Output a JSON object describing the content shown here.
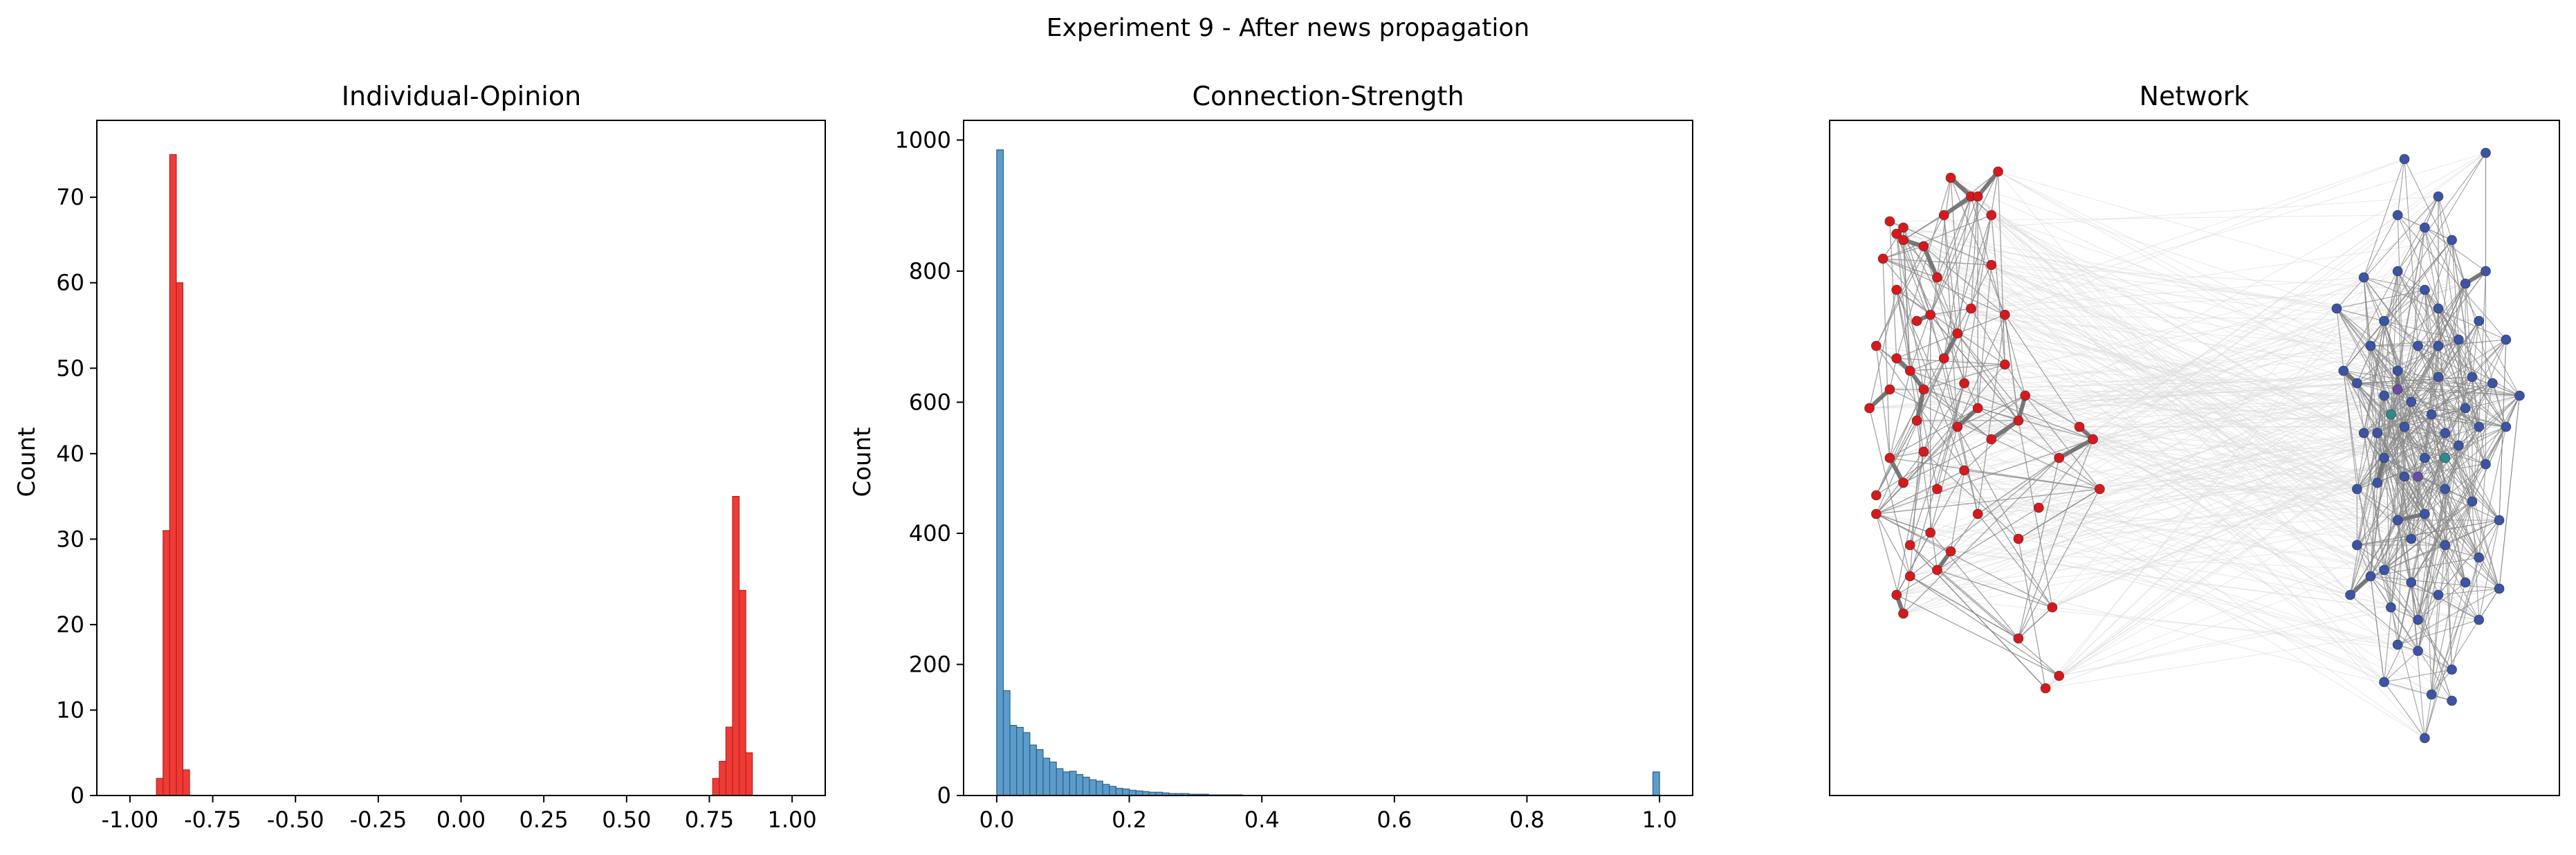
{
  "suptitle": "Experiment 9 - After news propagation",
  "colors": {
    "opinion_fill": "#f03b35",
    "opinion_edge": "#b22222",
    "strength_fill": "#5b9ccb",
    "strength_edge": "#2f5f85",
    "red_node": "#d7191c",
    "blue_node": "#3b54a4",
    "purple_node": "#6a4aa8",
    "teal_node": "#2a8c8c",
    "strong_edge": "#777777",
    "weak_edge": "#dcdcdc"
  },
  "chart_data": [
    {
      "type": "bar",
      "title": "Individual-Opinion",
      "xlabel": "",
      "ylabel": "Count",
      "xlim": [
        -1.1,
        1.1
      ],
      "ylim": [
        0,
        79
      ],
      "xticks": [
        "-1.00",
        "-0.75",
        "-0.50",
        "-0.25",
        "0.00",
        "0.25",
        "0.50",
        "0.75",
        "1.00"
      ],
      "xtick_values": [
        -1.0,
        -0.75,
        -0.5,
        -0.25,
        0.0,
        0.25,
        0.5,
        0.75,
        1.0
      ],
      "yticks": [
        "0",
        "10",
        "20",
        "30",
        "40",
        "50",
        "60",
        "70"
      ],
      "ytick_values": [
        0,
        10,
        20,
        30,
        40,
        50,
        60,
        70
      ],
      "bin_width": 0.02,
      "bin_left_edges": [
        -0.92,
        -0.9,
        -0.88,
        -0.86,
        -0.84,
        0.76,
        0.78,
        0.8,
        0.82,
        0.84,
        0.86
      ],
      "values": [
        2,
        31,
        75,
        60,
        3,
        2,
        4,
        8,
        35,
        24,
        5
      ]
    },
    {
      "type": "bar",
      "title": "Connection-Strength",
      "xlabel": "",
      "ylabel": "Count",
      "xlim": [
        -0.05,
        1.05
      ],
      "ylim": [
        0,
        1030
      ],
      "xticks": [
        "0.0",
        "0.2",
        "0.4",
        "0.6",
        "0.8",
        "1.0"
      ],
      "xtick_values": [
        0.0,
        0.2,
        0.4,
        0.6,
        0.8,
        1.0
      ],
      "yticks": [
        "0",
        "200",
        "400",
        "600",
        "800",
        "1000"
      ],
      "ytick_values": [
        0,
        200,
        400,
        600,
        800,
        1000
      ],
      "bin_width": 0.01,
      "bin_start": 0.0,
      "values": [
        985,
        160,
        107,
        104,
        96,
        77,
        70,
        57,
        51,
        41,
        36,
        37,
        32,
        28,
        24,
        22,
        17,
        14,
        11,
        10,
        8,
        7,
        6,
        5,
        5,
        4,
        3,
        3,
        3,
        2,
        2,
        2,
        1,
        1,
        1,
        1,
        1,
        0,
        0,
        0,
        0,
        0,
        0,
        0,
        0,
        0,
        0,
        0,
        0,
        0,
        0,
        0,
        0,
        0,
        0,
        0,
        0,
        0,
        0,
        0,
        0,
        0,
        0,
        0,
        0,
        0,
        0,
        0,
        0,
        0,
        0,
        0,
        0,
        0,
        0,
        0,
        0,
        0,
        0,
        0,
        0,
        0,
        0,
        0,
        0,
        0,
        0,
        0,
        0,
        0,
        0,
        0,
        0,
        0,
        0,
        0,
        0,
        0,
        0,
        36
      ]
    },
    {
      "type": "network",
      "title": "Network",
      "red_nodes": [
        [
          0.14,
          0.95
        ],
        [
          0.17,
          0.92
        ],
        [
          0.18,
          0.92
        ],
        [
          0.05,
          0.88
        ],
        [
          0.06,
          0.86
        ],
        [
          0.07,
          0.87
        ],
        [
          0.07,
          0.85
        ],
        [
          0.04,
          0.82
        ],
        [
          0.1,
          0.84
        ],
        [
          0.06,
          0.77
        ],
        [
          0.13,
          0.89
        ],
        [
          0.21,
          0.96
        ],
        [
          0.2,
          0.89
        ],
        [
          0.12,
          0.79
        ],
        [
          0.11,
          0.73
        ],
        [
          0.09,
          0.72
        ],
        [
          0.03,
          0.68
        ],
        [
          0.06,
          0.66
        ],
        [
          0.08,
          0.64
        ],
        [
          0.05,
          0.61
        ],
        [
          0.02,
          0.58
        ],
        [
          0.1,
          0.61
        ],
        [
          0.13,
          0.66
        ],
        [
          0.16,
          0.62
        ],
        [
          0.15,
          0.7
        ],
        [
          0.1,
          0.51
        ],
        [
          0.05,
          0.5
        ],
        [
          0.03,
          0.44
        ],
        [
          0.07,
          0.46
        ],
        [
          0.12,
          0.45
        ],
        [
          0.16,
          0.48
        ],
        [
          0.2,
          0.53
        ],
        [
          0.24,
          0.56
        ],
        [
          0.18,
          0.58
        ],
        [
          0.11,
          0.38
        ],
        [
          0.14,
          0.35
        ],
        [
          0.08,
          0.36
        ],
        [
          0.03,
          0.41
        ],
        [
          0.06,
          0.28
        ],
        [
          0.07,
          0.25
        ],
        [
          0.24,
          0.21
        ],
        [
          0.28,
          0.13
        ],
        [
          0.3,
          0.15
        ],
        [
          0.29,
          0.26
        ],
        [
          0.36,
          0.45
        ],
        [
          0.35,
          0.53
        ],
        [
          0.3,
          0.5
        ],
        [
          0.27,
          0.42
        ],
        [
          0.33,
          0.55
        ],
        [
          0.25,
          0.6
        ],
        [
          0.08,
          0.31
        ],
        [
          0.22,
          0.73
        ],
        [
          0.2,
          0.81
        ],
        [
          0.15,
          0.55
        ],
        [
          0.18,
          0.41
        ],
        [
          0.12,
          0.32
        ],
        [
          0.24,
          0.37
        ],
        [
          0.17,
          0.74
        ],
        [
          0.22,
          0.65
        ],
        [
          0.09,
          0.56
        ]
      ],
      "blue_nodes": [
        [
          0.71,
          0.74
        ],
        [
          0.75,
          0.79
        ],
        [
          0.72,
          0.64
        ],
        [
          0.75,
          0.54
        ],
        [
          0.77,
          0.46
        ],
        [
          0.8,
          0.4
        ],
        [
          0.74,
          0.36
        ],
        [
          0.78,
          0.32
        ],
        [
          0.82,
          0.3
        ],
        [
          0.73,
          0.28
        ],
        [
          0.8,
          0.2
        ],
        [
          0.83,
          0.19
        ],
        [
          0.78,
          0.14
        ],
        [
          0.85,
          0.12
        ],
        [
          0.88,
          0.11
        ],
        [
          0.84,
          0.05
        ],
        [
          0.88,
          0.16
        ],
        [
          0.92,
          0.24
        ],
        [
          0.95,
          0.29
        ],
        [
          0.9,
          0.3
        ],
        [
          0.92,
          0.34
        ],
        [
          0.95,
          0.4
        ],
        [
          0.93,
          0.49
        ],
        [
          0.96,
          0.55
        ],
        [
          0.9,
          0.58
        ],
        [
          0.86,
          0.63
        ],
        [
          0.83,
          0.68
        ],
        [
          0.86,
          0.74
        ],
        [
          0.9,
          0.78
        ],
        [
          0.92,
          0.72
        ],
        [
          0.96,
          0.69
        ],
        [
          0.98,
          0.6
        ],
        [
          0.93,
          0.8
        ],
        [
          0.88,
          0.85
        ],
        [
          0.84,
          0.87
        ],
        [
          0.8,
          0.8
        ],
        [
          0.78,
          0.72
        ],
        [
          0.74,
          0.62
        ],
        [
          0.78,
          0.6
        ],
        [
          0.81,
          0.55
        ],
        [
          0.84,
          0.5
        ],
        [
          0.87,
          0.45
        ],
        [
          0.84,
          0.41
        ],
        [
          0.87,
          0.36
        ],
        [
          0.86,
          0.28
        ],
        [
          0.83,
          0.24
        ],
        [
          0.8,
          0.64
        ],
        [
          0.77,
          0.54
        ],
        [
          0.81,
          0.47
        ],
        [
          0.89,
          0.52
        ],
        [
          0.91,
          0.63
        ],
        [
          0.85,
          0.57
        ],
        [
          0.82,
          0.37
        ],
        [
          0.76,
          0.68
        ],
        [
          0.94,
          0.62
        ],
        [
          0.89,
          0.69
        ],
        [
          0.8,
          0.89
        ],
        [
          0.86,
          0.92
        ],
        [
          0.81,
          0.98
        ],
        [
          0.93,
          0.99
        ],
        [
          0.91,
          0.43
        ],
        [
          0.79,
          0.26
        ],
        [
          0.76,
          0.31
        ],
        [
          0.84,
          0.77
        ],
        [
          0.87,
          0.54
        ],
        [
          0.82,
          0.59
        ],
        [
          0.78,
          0.5
        ],
        [
          0.92,
          0.55
        ],
        [
          0.74,
          0.45
        ],
        [
          0.86,
          0.68
        ]
      ],
      "purple_nodes": [
        [
          0.83,
          0.47
        ],
        [
          0.8,
          0.61
        ]
      ],
      "teal_nodes": [
        [
          0.79,
          0.57
        ],
        [
          0.87,
          0.5
        ]
      ]
    }
  ]
}
